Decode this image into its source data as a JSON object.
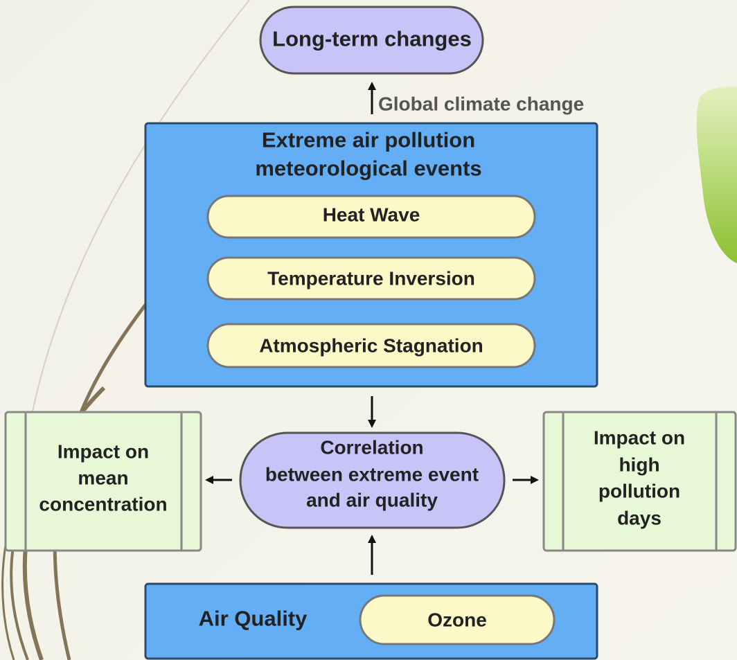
{
  "top": {
    "label": "Long-term changes"
  },
  "arrow_label": "Global climate change",
  "events": {
    "title": [
      "Extreme air pollution",
      "meteorological events"
    ],
    "items": [
      "Heat Wave",
      "Temperature Inversion",
      "Atmospheric Stagnation"
    ]
  },
  "left": {
    "lines": [
      "Impact on",
      "mean",
      "concentration"
    ]
  },
  "center": {
    "lines": [
      "Correlation",
      "between extreme event",
      "and air quality"
    ]
  },
  "right": {
    "lines": [
      "Impact on",
      "high",
      "pollution",
      "days"
    ]
  },
  "air_quality": {
    "label": "Air Quality",
    "item": "Ozone"
  }
}
